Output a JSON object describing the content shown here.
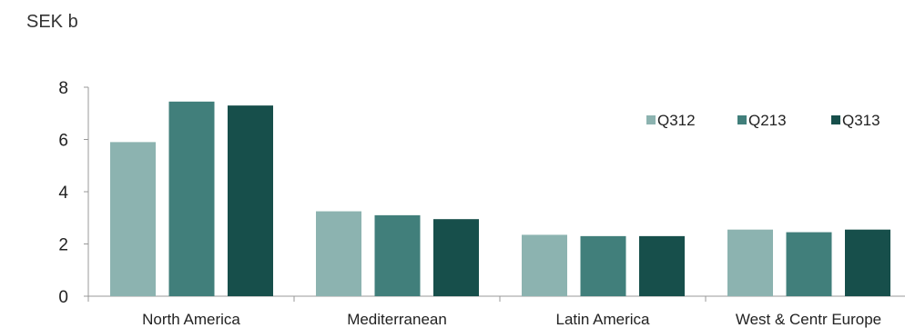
{
  "chart_data": {
    "type": "bar",
    "title": "",
    "unit_label": "SEK b",
    "xlabel": "",
    "ylabel": "",
    "categories": [
      "North America",
      "Mediterranean",
      "Latin America",
      "West & Centr Europe"
    ],
    "series": [
      {
        "name": "Q312",
        "values": [
          5.9,
          3.25,
          2.35,
          2.55
        ],
        "color": "#8cb3b0"
      },
      {
        "name": "Q213",
        "values": [
          7.45,
          3.1,
          2.3,
          2.45
        ],
        "color": "#417f7b"
      },
      {
        "name": "Q313",
        "values": [
          7.3,
          2.95,
          2.3,
          2.55
        ],
        "color": "#174f4b"
      }
    ],
    "ylim": [
      0,
      8
    ],
    "yticks": [
      0,
      2,
      4,
      6,
      8
    ],
    "grid": false,
    "legend_position": "top-right"
  }
}
